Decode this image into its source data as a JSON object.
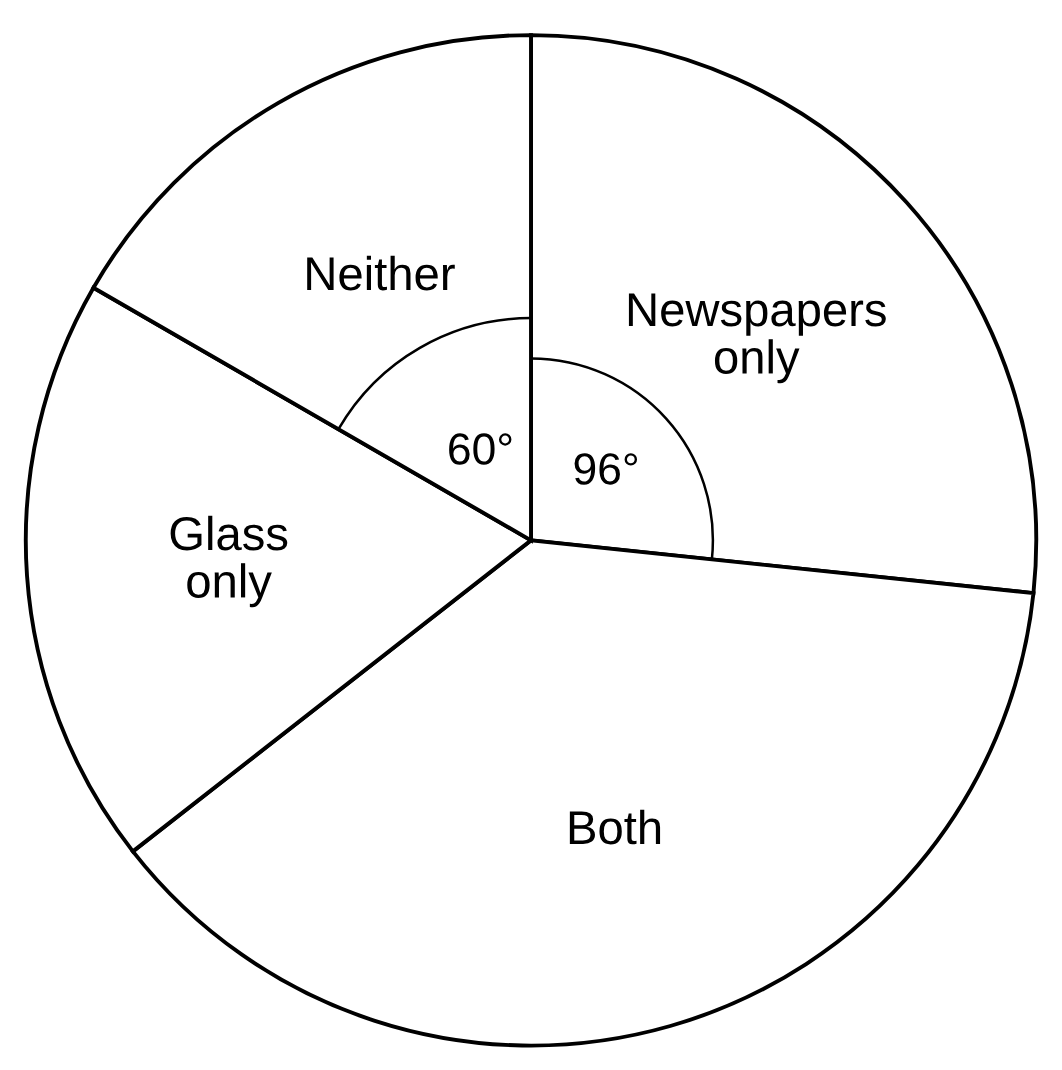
{
  "chart_data": {
    "type": "pie",
    "categories": [
      "Newspapers\nonly",
      "Both",
      "Glass\nonly",
      "Neither"
    ],
    "values": [
      96,
      136,
      68,
      60
    ],
    "colors": [
      "#ffffff",
      "#ffffff",
      "#ffffff",
      "#ffffff"
    ],
    "value_labels": [
      "96°",
      null,
      null,
      "60°"
    ]
  }
}
